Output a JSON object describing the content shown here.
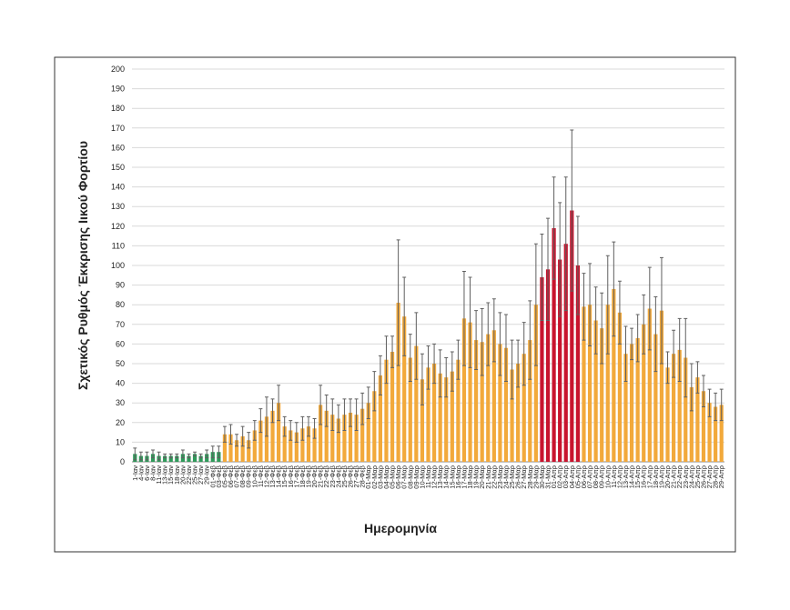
{
  "chart_data": {
    "type": "bar",
    "ylabel": "Σχετικός Ρυθμός Έκκρισης Ιικού Φορτίου",
    "xlabel": "Ημερομηνία",
    "ylim": [
      0,
      200
    ],
    "yticks": [
      0,
      10,
      20,
      30,
      40,
      50,
      60,
      70,
      80,
      90,
      100,
      110,
      120,
      130,
      140,
      150,
      160,
      170,
      180,
      190,
      200
    ],
    "grid": true,
    "error_color": "#606060",
    "categories": [
      "1-Ιαν",
      "4-Ιαν",
      "6-Ιαν",
      "8-Ιαν",
      "11-Ιαν",
      "13-Ιαν",
      "15-Ιαν",
      "18-Ιαν",
      "20-Ιαν",
      "22-Ιαν",
      "25-Ιαν",
      "27-Ιαν",
      "29-Ιαν",
      "01-Φεβ",
      "03-Φεβ",
      "05-Φεβ",
      "06-Φεβ",
      "07-Φεβ",
      "08-Φεβ",
      "09-Φεβ",
      "10-Φεβ",
      "11-Φεβ",
      "12-Φεβ",
      "13-Φεβ",
      "14-Φεβ",
      "15-Φεβ",
      "16-Φεβ",
      "17-Φεβ",
      "18-Φεβ",
      "19-Φεβ",
      "20-Φεβ",
      "21-Φεβ",
      "22-Φεβ",
      "23-Φεβ",
      "24-Φεβ",
      "25-Φεβ",
      "26-Φεβ",
      "27-Φεβ",
      "28-Φεβ",
      "01-Μαρ",
      "02-Μαρ",
      "03-Μαρ",
      "04-Μαρ",
      "05-Μαρ",
      "06-Μαρ",
      "07-Μαρ",
      "08-Μαρ",
      "09-Μαρ",
      "10-Μαρ",
      "11-Μαρ",
      "12-Μαρ",
      "13-Μαρ",
      "14-Μαρ",
      "15-Μαρ",
      "16-Μαρ",
      "17-Μαρ",
      "18-Μαρ",
      "19-Μαρ",
      "20-Μαρ",
      "21-Μαρ",
      "22-Μαρ",
      "23-Μαρ",
      "24-Μαρ",
      "25-Μαρ",
      "26-Μαρ",
      "27-Μαρ",
      "28-Μαρ",
      "29-Μαρ",
      "30-Μαρ",
      "31-Μαρ",
      "01-Απρ",
      "02-Απρ",
      "03-Απρ",
      "04-Απρ",
      "05-Απρ",
      "06-Απρ",
      "07-Απρ",
      "08-Απρ",
      "09-Απρ",
      "10-Απρ",
      "11-Απρ",
      "12-Απρ",
      "13-Απρ",
      "14-Απρ",
      "15-Απρ",
      "16-Απρ",
      "17-Απρ",
      "18-Απρ",
      "19-Απρ",
      "20-Απρ",
      "21-Απρ",
      "22-Απρ",
      "23-Απρ",
      "24-Απρ",
      "25-Απρ",
      "26-Απρ",
      "27-Απρ",
      "28-Απρ",
      "29-Απρ"
    ],
    "values": [
      4,
      3,
      3,
      4,
      3,
      3,
      3,
      3,
      4,
      3,
      4,
      3,
      4,
      5,
      5,
      14,
      14,
      11,
      13,
      11,
      16,
      21,
      23,
      26,
      30,
      18,
      16,
      15,
      17,
      18,
      17,
      29,
      26,
      24,
      22,
      24,
      25,
      24,
      27,
      30,
      36,
      44,
      52,
      56,
      81,
      74,
      53,
      59,
      42,
      48,
      50,
      45,
      43,
      46,
      52,
      73,
      71,
      62,
      61,
      65,
      67,
      60,
      58,
      47,
      50,
      55,
      62,
      80,
      94,
      98,
      119,
      103,
      111,
      128,
      100,
      79,
      80,
      72,
      68,
      80,
      88,
      76,
      55,
      60,
      63,
      70,
      78,
      65,
      77,
      48,
      55,
      57,
      53,
      38,
      43,
      36,
      30,
      28,
      29
    ],
    "errors": [
      3,
      2,
      2,
      2,
      2,
      1,
      1,
      1,
      2,
      1,
      1,
      1,
      2,
      3,
      3,
      4,
      5,
      3,
      5,
      4,
      5,
      6,
      10,
      6,
      9,
      5,
      5,
      5,
      6,
      5,
      5,
      10,
      8,
      8,
      7,
      8,
      7,
      8,
      8,
      8,
      10,
      10,
      12,
      8,
      32,
      20,
      12,
      17,
      13,
      11,
      10,
      12,
      10,
      10,
      10,
      24,
      23,
      15,
      17,
      16,
      16,
      16,
      17,
      15,
      12,
      16,
      20,
      31,
      22,
      26,
      26,
      29,
      34,
      41,
      25,
      17,
      21,
      17,
      18,
      25,
      24,
      16,
      14,
      8,
      12,
      15,
      21,
      19,
      27,
      8,
      12,
      16,
      20,
      12,
      8,
      8,
      7,
      7,
      8
    ],
    "colors": [
      "#2f9a5a",
      "#2f9a5a",
      "#2f9a5a",
      "#2f9a5a",
      "#2f9a5a",
      "#2f9a5a",
      "#2f9a5a",
      "#2f9a5a",
      "#2f9a5a",
      "#2f9a5a",
      "#2f9a5a",
      "#2f9a5a",
      "#2f9a5a",
      "#2f9a5a",
      "#2f9a5a",
      "#f2a93b",
      "#f2a93b",
      "#f2a93b",
      "#f2a93b",
      "#f2a93b",
      "#f2a93b",
      "#f2a93b",
      "#f2a93b",
      "#f2a93b",
      "#f2a93b",
      "#f2a93b",
      "#f2a93b",
      "#f2a93b",
      "#f2a93b",
      "#f2a93b",
      "#f2a93b",
      "#f2a93b",
      "#f2a93b",
      "#f2a93b",
      "#f2a93b",
      "#f2a93b",
      "#f2a93b",
      "#f2a93b",
      "#f2a93b",
      "#f2a93b",
      "#f2a93b",
      "#f2a93b",
      "#f2a93b",
      "#f2a93b",
      "#f2a93b",
      "#f2a93b",
      "#f2a93b",
      "#f2a93b",
      "#f2a93b",
      "#f2a93b",
      "#f2a93b",
      "#f2a93b",
      "#f2a93b",
      "#f2a93b",
      "#f2a93b",
      "#f2a93b",
      "#f2a93b",
      "#f2a93b",
      "#f2a93b",
      "#f2a93b",
      "#f2a93b",
      "#f2a93b",
      "#f2a93b",
      "#f2a93b",
      "#f2a93b",
      "#f2a93b",
      "#f2a93b",
      "#f2a93b",
      "#c8142e",
      "#c8142e",
      "#c8142e",
      "#c8142e",
      "#c8142e",
      "#c8142e",
      "#c8142e",
      "#f2a93b",
      "#f2a93b",
      "#f2a93b",
      "#f2a93b",
      "#f2a93b",
      "#f2a93b",
      "#f2a93b",
      "#f2a93b",
      "#f2a93b",
      "#f2a93b",
      "#f2a93b",
      "#f2a93b",
      "#f2a93b",
      "#f2a93b",
      "#f2a93b",
      "#f2a93b",
      "#f2a93b",
      "#f2a93b",
      "#f2a93b",
      "#f2a93b",
      "#f2a93b",
      "#f2a93b",
      "#f2a93b",
      "#f2a93b"
    ]
  }
}
